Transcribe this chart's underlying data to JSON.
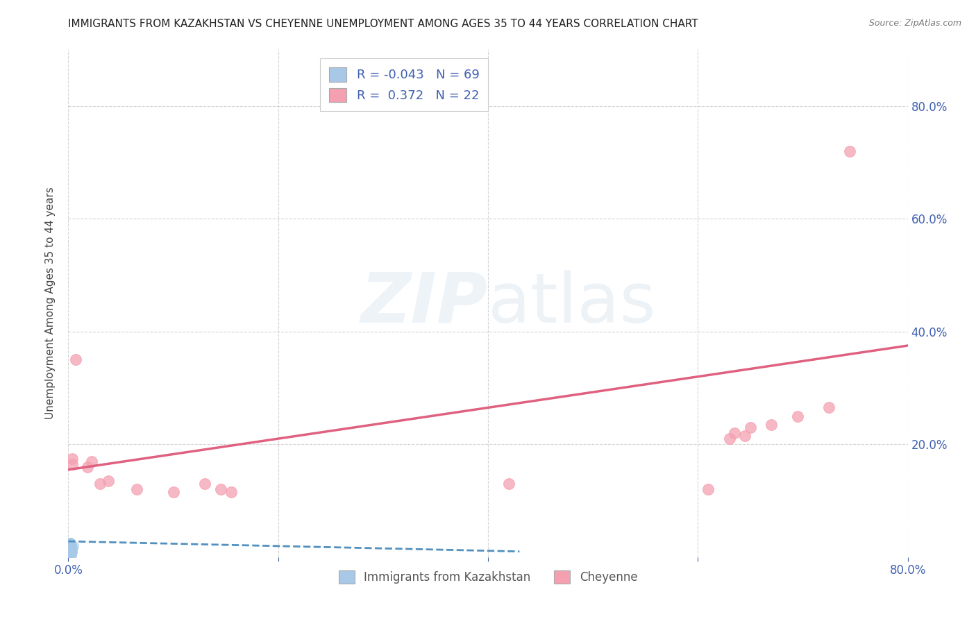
{
  "title": "IMMIGRANTS FROM KAZAKHSTAN VS CHEYENNE UNEMPLOYMENT AMONG AGES 35 TO 44 YEARS CORRELATION CHART",
  "source": "Source: ZipAtlas.com",
  "ylabel": "Unemployment Among Ages 35 to 44 years",
  "xlim": [
    0.0,
    0.8
  ],
  "ylim": [
    0.0,
    0.9
  ],
  "xticks": [
    0.0,
    0.2,
    0.4,
    0.6,
    0.8
  ],
  "xticklabels": [
    "0.0%",
    "",
    "",
    "",
    "80.0%"
  ],
  "yticks": [
    0.0,
    0.2,
    0.4,
    0.6,
    0.8
  ],
  "right_yticklabels": [
    "",
    "20.0%",
    "40.0%",
    "60.0%",
    "80.0%"
  ],
  "left_yticklabels": [
    "",
    "",
    "",
    "",
    ""
  ],
  "watermark_zip": "ZIP",
  "watermark_atlas": "atlas",
  "legend_r1": "R = -0.043",
  "legend_n1": "N = 69",
  "legend_r2": "R =  0.372",
  "legend_n2": "N = 22",
  "blue_color": "#a8c8e8",
  "pink_color": "#f4a0b0",
  "blue_line_color": "#5090c0",
  "pink_line_color": "#e06080",
  "tick_color": "#4060b0",
  "grid_color": "#d0d0d0",
  "blue_scatter_x": [
    0.001,
    0.002,
    0.003,
    0.001,
    0.002,
    0.003,
    0.004,
    0.005,
    0.001,
    0.002,
    0.001,
    0.002,
    0.003,
    0.001,
    0.002,
    0.001,
    0.002,
    0.003,
    0.001,
    0.002,
    0.001,
    0.003,
    0.002,
    0.001,
    0.002,
    0.003,
    0.001,
    0.004,
    0.002,
    0.001,
    0.003,
    0.002,
    0.001,
    0.002,
    0.003,
    0.001,
    0.002,
    0.001,
    0.002,
    0.001,
    0.003,
    0.002,
    0.001,
    0.002,
    0.001,
    0.003,
    0.002,
    0.001,
    0.002,
    0.001,
    0.003,
    0.002,
    0.001,
    0.004,
    0.002,
    0.001,
    0.002,
    0.003,
    0.001,
    0.002,
    0.001,
    0.002,
    0.003,
    0.001,
    0.002,
    0.001,
    0.002,
    0.003,
    0.001
  ],
  "blue_scatter_y": [
    0.01,
    0.015,
    0.02,
    0.025,
    0.005,
    0.01,
    0.015,
    0.02,
    0.025,
    0.005,
    0.01,
    0.02,
    0.015,
    0.025,
    0.005,
    0.015,
    0.01,
    0.02,
    0.005,
    0.025,
    0.01,
    0.015,
    0.005,
    0.02,
    0.01,
    0.005,
    0.025,
    0.01,
    0.015,
    0.02,
    0.005,
    0.025,
    0.01,
    0.015,
    0.02,
    0.005,
    0.025,
    0.01,
    0.015,
    0.005,
    0.02,
    0.01,
    0.025,
    0.005,
    0.015,
    0.01,
    0.02,
    0.005,
    0.025,
    0.01,
    0.015,
    0.005,
    0.02,
    0.01,
    0.025,
    0.015,
    0.005,
    0.01,
    0.02,
    0.015,
    0.025,
    0.005,
    0.01,
    0.02,
    0.015,
    0.005,
    0.025,
    0.01,
    0.02
  ],
  "pink_scatter_x": [
    0.004,
    0.004,
    0.007,
    0.018,
    0.022,
    0.03,
    0.038,
    0.065,
    0.1,
    0.13,
    0.145,
    0.155,
    0.42,
    0.61,
    0.63,
    0.635,
    0.645,
    0.65,
    0.67,
    0.695,
    0.725,
    0.745
  ],
  "pink_scatter_y": [
    0.175,
    0.165,
    0.35,
    0.16,
    0.17,
    0.13,
    0.135,
    0.12,
    0.115,
    0.13,
    0.12,
    0.115,
    0.13,
    0.12,
    0.21,
    0.22,
    0.215,
    0.23,
    0.235,
    0.25,
    0.265,
    0.72
  ],
  "blue_trendline_x": [
    0.0,
    0.43
  ],
  "blue_trendline_y": [
    0.028,
    0.01
  ],
  "pink_trendline_x": [
    0.0,
    0.8
  ],
  "pink_trendline_y": [
    0.155,
    0.375
  ],
  "legend_label1": "Immigrants from Kazakhstan",
  "legend_label2": "Cheyenne"
}
